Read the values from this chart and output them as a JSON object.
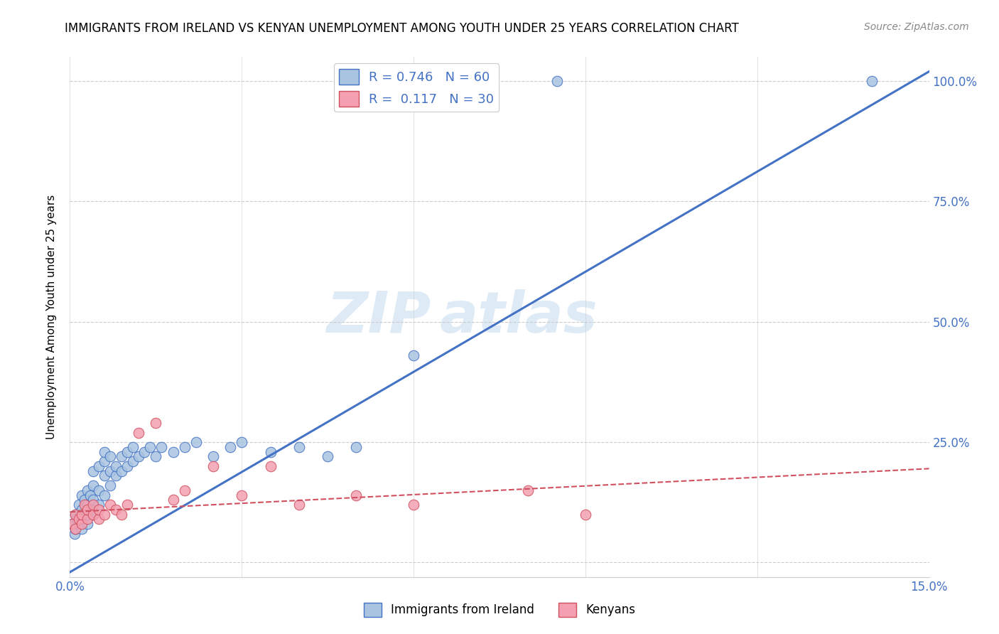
{
  "title": "IMMIGRANTS FROM IRELAND VS KENYAN UNEMPLOYMENT AMONG YOUTH UNDER 25 YEARS CORRELATION CHART",
  "source": "Source: ZipAtlas.com",
  "ylabel": "Unemployment Among Youth under 25 years",
  "x_min": 0.0,
  "x_max": 0.15,
  "y_min": 0.0,
  "y_max": 1.05,
  "ireland_R": 0.746,
  "ireland_N": 60,
  "kenya_R": 0.117,
  "kenya_N": 30,
  "ireland_color": "#a8c4e0",
  "kenya_color": "#f4a0b0",
  "ireland_line_color": "#4472c4",
  "kenya_line_color": "#d05060",
  "watermark_zip": "ZIP",
  "watermark_atlas": "atlas",
  "legend_label_ireland": "Immigrants from Ireland",
  "legend_label_kenya": "Kenyans",
  "ireland_scatter_x": [
    0.0005,
    0.0008,
    0.001,
    0.001,
    0.0012,
    0.0015,
    0.0015,
    0.0018,
    0.002,
    0.002,
    0.002,
    0.002,
    0.0025,
    0.0025,
    0.003,
    0.003,
    0.003,
    0.003,
    0.0035,
    0.0035,
    0.004,
    0.004,
    0.004,
    0.004,
    0.005,
    0.005,
    0.005,
    0.006,
    0.006,
    0.006,
    0.006,
    0.007,
    0.007,
    0.007,
    0.008,
    0.008,
    0.009,
    0.009,
    0.01,
    0.01,
    0.011,
    0.011,
    0.012,
    0.013,
    0.014,
    0.015,
    0.016,
    0.018,
    0.02,
    0.022,
    0.025,
    0.028,
    0.03,
    0.035,
    0.04,
    0.045,
    0.05,
    0.06,
    0.085,
    0.14
  ],
  "ireland_scatter_y": [
    0.08,
    0.06,
    0.07,
    0.1,
    0.09,
    0.08,
    0.12,
    0.1,
    0.07,
    0.09,
    0.11,
    0.14,
    0.1,
    0.13,
    0.08,
    0.1,
    0.12,
    0.15,
    0.11,
    0.14,
    0.1,
    0.13,
    0.16,
    0.19,
    0.12,
    0.15,
    0.2,
    0.14,
    0.18,
    0.21,
    0.23,
    0.16,
    0.19,
    0.22,
    0.18,
    0.2,
    0.19,
    0.22,
    0.2,
    0.23,
    0.21,
    0.24,
    0.22,
    0.23,
    0.24,
    0.22,
    0.24,
    0.23,
    0.24,
    0.25,
    0.22,
    0.24,
    0.25,
    0.23,
    0.24,
    0.22,
    0.24,
    0.43,
    1.0,
    1.0
  ],
  "kenya_scatter_x": [
    0.0005,
    0.001,
    0.001,
    0.0015,
    0.002,
    0.002,
    0.0025,
    0.003,
    0.003,
    0.004,
    0.004,
    0.005,
    0.005,
    0.006,
    0.007,
    0.008,
    0.009,
    0.01,
    0.012,
    0.015,
    0.018,
    0.02,
    0.025,
    0.03,
    0.035,
    0.04,
    0.05,
    0.06,
    0.08,
    0.09
  ],
  "kenya_scatter_y": [
    0.08,
    0.07,
    0.1,
    0.09,
    0.08,
    0.1,
    0.12,
    0.09,
    0.11,
    0.1,
    0.12,
    0.09,
    0.11,
    0.1,
    0.12,
    0.11,
    0.1,
    0.12,
    0.27,
    0.29,
    0.13,
    0.15,
    0.2,
    0.14,
    0.2,
    0.12,
    0.14,
    0.12,
    0.15,
    0.1
  ],
  "ireland_line_x0": 0.0,
  "ireland_line_y0": -0.02,
  "ireland_line_x1": 0.15,
  "ireland_line_y1": 1.02,
  "kenya_line_x0": 0.0,
  "kenya_line_y0": 0.105,
  "kenya_line_x1": 0.15,
  "kenya_line_y1": 0.195
}
